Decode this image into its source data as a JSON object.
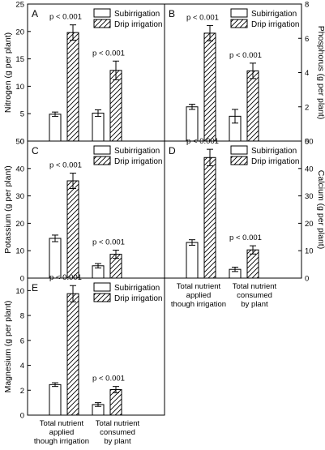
{
  "legend": {
    "subirrigation": "Subirrigation",
    "drip": "Drip irrigation"
  },
  "x_categories": [
    [
      "Total nutrient",
      "applied",
      "though irrigation"
    ],
    [
      "Total nutrient",
      "consumed",
      "by plant"
    ]
  ],
  "x_categories_E": [
    [
      "Total nutrient",
      "applied",
      "though irrigation"
    ],
    [
      "Total nutrient",
      "consumed",
      "by plant"
    ]
  ],
  "chart_data": [
    {
      "panel": "A",
      "type": "bar",
      "ylabel": "Nitrogen (g per plant)",
      "ylim": [
        0,
        25
      ],
      "yticks": [
        0,
        5,
        10,
        15,
        20,
        25
      ],
      "axis_side": "left",
      "categories": [
        "Total nutrient applied though irrigation",
        "Total nutrient consumed by plant"
      ],
      "series": [
        {
          "name": "Subirrigation",
          "values": [
            4.9,
            5.1
          ],
          "errors": [
            0.4,
            0.6
          ]
        },
        {
          "name": "Drip irrigation",
          "values": [
            19.8,
            12.9
          ],
          "errors": [
            1.4,
            1.7
          ]
        }
      ],
      "annotations": [
        "p < 0.001",
        "p < 0.001"
      ]
    },
    {
      "panel": "B",
      "type": "bar",
      "ylabel": "Phosphorus (g per plant)",
      "ylim": [
        0,
        8
      ],
      "yticks": [
        0,
        2,
        4,
        6,
        8
      ],
      "axis_side": "right",
      "categories": [
        "Total nutrient applied though irrigation",
        "Total nutrient consumed by plant"
      ],
      "series": [
        {
          "name": "Subirrigation",
          "values": [
            2.0,
            1.45
          ],
          "errors": [
            0.15,
            0.4
          ]
        },
        {
          "name": "Drip irrigation",
          "values": [
            6.3,
            4.1
          ],
          "errors": [
            0.45,
            0.45
          ]
        }
      ],
      "annotations": [
        "p < 0.001",
        "p < 0.001"
      ]
    },
    {
      "panel": "C",
      "type": "bar",
      "ylabel": "Potassium (g per plant)",
      "ylim": [
        0,
        50
      ],
      "yticks": [
        0,
        10,
        20,
        30,
        40,
        50
      ],
      "axis_side": "left",
      "categories": [
        "Total nutrient applied though irrigation",
        "Total nutrient consumed by plant"
      ],
      "series": [
        {
          "name": "Subirrigation",
          "values": [
            14.5,
            4.5
          ],
          "errors": [
            1.2,
            0.8
          ]
        },
        {
          "name": "Drip irrigation",
          "values": [
            35.5,
            8.7
          ],
          "errors": [
            2.8,
            1.5
          ]
        }
      ],
      "annotations": [
        "p < 0.001",
        "p < 0.001"
      ]
    },
    {
      "panel": "D",
      "type": "bar",
      "ylabel": "Calcium (g per plant)",
      "ylim": [
        0,
        50
      ],
      "yticks": [
        0,
        10,
        20,
        30,
        40,
        50
      ],
      "axis_side": "right",
      "categories": [
        "Total nutrient applied though irrigation",
        "Total nutrient consumed by plant"
      ],
      "series": [
        {
          "name": "Subirrigation",
          "values": [
            13.0,
            3.2
          ],
          "errors": [
            1.0,
            0.8
          ]
        },
        {
          "name": "Drip irrigation",
          "values": [
            44.0,
            10.3
          ],
          "errors": [
            3.0,
            1.5
          ]
        }
      ],
      "annotations": [
        "p < 0.001",
        "p < 0.001"
      ]
    },
    {
      "panel": "E",
      "type": "bar",
      "ylabel": "Magnesium (g per plant)",
      "ylim": [
        0,
        11
      ],
      "yticks": [
        0,
        2,
        4,
        6,
        8,
        10
      ],
      "axis_side": "left",
      "categories": [
        "Total nutrient applied though irrigation",
        "Total nutrient consumed by plant"
      ],
      "series": [
        {
          "name": "Subirrigation",
          "values": [
            2.45,
            0.85
          ],
          "errors": [
            0.15,
            0.15
          ]
        },
        {
          "name": "Drip irrigation",
          "values": [
            9.75,
            2.05
          ],
          "errors": [
            0.65,
            0.25
          ]
        }
      ],
      "annotations": [
        "p < 0.001",
        "p < 0.001"
      ]
    }
  ]
}
